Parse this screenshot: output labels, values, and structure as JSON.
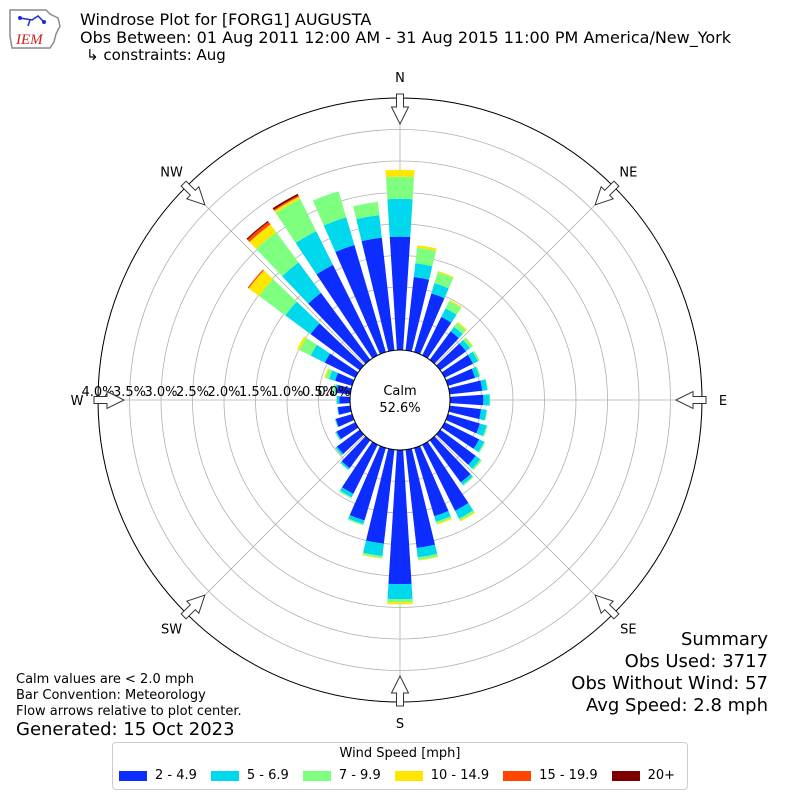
{
  "header": {
    "logo_text": "IEM",
    "title": "Windrose Plot for [FORG1] AUGUSTA",
    "subtitle": "Obs Between: 01 Aug 2011 12:00 AM - 31 Aug 2015 11:00 PM America/New_York",
    "constraints": "↳ constraints: Aug"
  },
  "notes": {
    "calm_note": "Calm values are < 2.0 mph",
    "bar_note": "Bar Convention: Meteorology",
    "flow_note": "Flow arrows relative to plot center.",
    "generated": "Generated: 15 Oct 2023"
  },
  "summary": {
    "title": "Summary",
    "obs_used": "Obs Used: 3717",
    "obs_without_wind": "Obs Without Wind: 57",
    "avg_speed": "Avg Speed: 2.8 mph"
  },
  "colors": {
    "bins": [
      "#0d2cff",
      "#00d8ee",
      "#7fff7f",
      "#ffe600",
      "#ff4500",
      "#800000"
    ]
  },
  "chart_data": {
    "type": "bar",
    "subtype": "windrose",
    "title": "Windrose Plot for [FORG1] AUGUSTA",
    "calm_label": "Calm",
    "calm_value": "52.6%",
    "compass_labels": [
      "N",
      "NE",
      "E",
      "SE",
      "S",
      "SW",
      "W",
      "NW"
    ],
    "radial_ticks": [
      "0.0%",
      "0.5%",
      "1.0%",
      "1.5%",
      "2.0%",
      "2.5%",
      "3.0%",
      "3.5%",
      "4.0%"
    ],
    "r_range": [
      0,
      4.0
    ],
    "grid": true,
    "legend_title": "Wind Speed [mph]",
    "legend_position": "bottom",
    "speed_bins": [
      "2 - 4.9",
      "5 - 6.9",
      "7 - 9.9",
      "10 - 14.9",
      "15 - 19.9",
      "20+"
    ],
    "directions_deg": [
      0,
      10,
      20,
      30,
      40,
      50,
      60,
      70,
      80,
      90,
      100,
      110,
      120,
      130,
      140,
      150,
      160,
      170,
      180,
      190,
      200,
      210,
      220,
      230,
      240,
      250,
      260,
      270,
      280,
      290,
      300,
      310,
      320,
      330,
      340,
      350
    ],
    "series": [
      {
        "name": "2 - 4.9",
        "values": [
          1.8,
          1.17,
          0.97,
          0.68,
          0.56,
          0.51,
          0.5,
          0.45,
          0.52,
          0.53,
          0.5,
          0.53,
          0.61,
          0.7,
          0.83,
          1.17,
          1.13,
          1.57,
          2.13,
          1.5,
          1.2,
          0.87,
          0.55,
          0.45,
          0.33,
          0.27,
          0.2,
          0.17,
          0.22,
          0.28,
          0.54,
          0.97,
          1.32,
          1.6,
          1.77,
          1.8
        ]
      },
      {
        "name": "5 - 6.9",
        "values": [
          0.6,
          0.22,
          0.17,
          0.15,
          0.09,
          0.08,
          0.09,
          0.07,
          0.08,
          0.1,
          0.09,
          0.11,
          0.09,
          0.09,
          0.05,
          0.14,
          0.09,
          0.15,
          0.24,
          0.2,
          0.06,
          0.06,
          0.03,
          0.03,
          0.02,
          0.01,
          0.01,
          0.04,
          0.03,
          0.1,
          0.25,
          0.5,
          0.6,
          0.6,
          0.46,
          0.36
        ]
      },
      {
        "name": "7 - 9.9",
        "values": [
          0.35,
          0.25,
          0.18,
          0.13,
          0.08,
          0.05,
          0.03,
          0.02,
          0.01,
          0.01,
          0.01,
          0.02,
          0.02,
          0.03,
          0.02,
          0.03,
          0.03,
          0.04,
          0.05,
          0.03,
          0.02,
          0.02,
          0.01,
          0.01,
          0.01,
          0.01,
          0.0,
          0.01,
          0.03,
          0.06,
          0.2,
          0.52,
          0.6,
          0.57,
          0.43,
          0.21
        ]
      },
      {
        "name": "10 - 14.9",
        "values": [
          0.11,
          0.04,
          0.02,
          0.02,
          0.02,
          0.01,
          0.0,
          0.0,
          0.0,
          0.0,
          0.0,
          0.0,
          0.0,
          0.0,
          0.0,
          0.02,
          0.02,
          0.01,
          0.03,
          0.01,
          0.0,
          0.0,
          0.0,
          0.0,
          0.0,
          0.0,
          0.0,
          0.0,
          0.0,
          0.02,
          0.04,
          0.2,
          0.15,
          0.04,
          0.0,
          0.0
        ]
      },
      {
        "name": "15 - 19.9",
        "values": [
          0.0,
          0.0,
          0.0,
          0.0,
          0.0,
          0.0,
          0.0,
          0.0,
          0.0,
          0.0,
          0.0,
          0.0,
          0.0,
          0.0,
          0.0,
          0.0,
          0.0,
          0.0,
          0.0,
          0.0,
          0.0,
          0.0,
          0.0,
          0.0,
          0.0,
          0.0,
          0.0,
          0.0,
          0.0,
          0.0,
          0.0,
          0.02,
          0.05,
          0.02,
          0.0,
          0.0
        ]
      },
      {
        "name": "20+",
        "values": [
          0.0,
          0.0,
          0.0,
          0.0,
          0.0,
          0.0,
          0.0,
          0.0,
          0.0,
          0.0,
          0.0,
          0.0,
          0.0,
          0.0,
          0.0,
          0.0,
          0.0,
          0.0,
          0.0,
          0.0,
          0.0,
          0.0,
          0.0,
          0.0,
          0.0,
          0.0,
          0.0,
          0.0,
          0.0,
          0.0,
          0.0,
          0.0,
          0.02,
          0.03,
          0.0,
          0.0
        ]
      }
    ]
  }
}
